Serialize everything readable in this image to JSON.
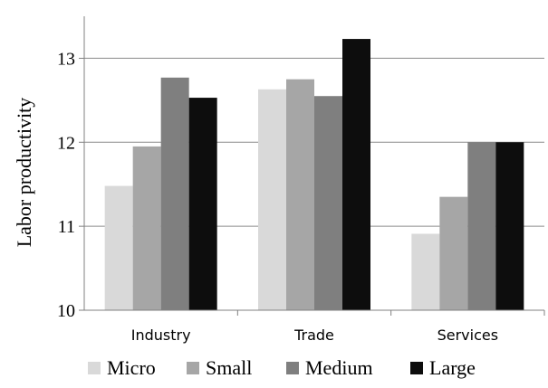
{
  "chart_data": {
    "type": "bar",
    "title": "",
    "xlabel": "",
    "ylabel": "Labor productivity",
    "ylim": [
      10,
      13.5
    ],
    "yticks": [
      10,
      11,
      12,
      13
    ],
    "grid": true,
    "legend_position": "bottom",
    "categories": [
      "Industry",
      "Trade",
      "Services"
    ],
    "series": [
      {
        "name": "Micro",
        "color": "#d9d9d9",
        "values": [
          11.48,
          12.63,
          10.91
        ]
      },
      {
        "name": "Small",
        "color": "#a6a6a6",
        "values": [
          11.95,
          12.75,
          11.35
        ]
      },
      {
        "name": "Medium",
        "color": "#7f7f7f",
        "values": [
          12.77,
          12.55,
          12.0
        ]
      },
      {
        "name": "Large",
        "color": "#0d0d0d",
        "values": [
          12.53,
          13.23,
          12.0
        ]
      }
    ]
  }
}
